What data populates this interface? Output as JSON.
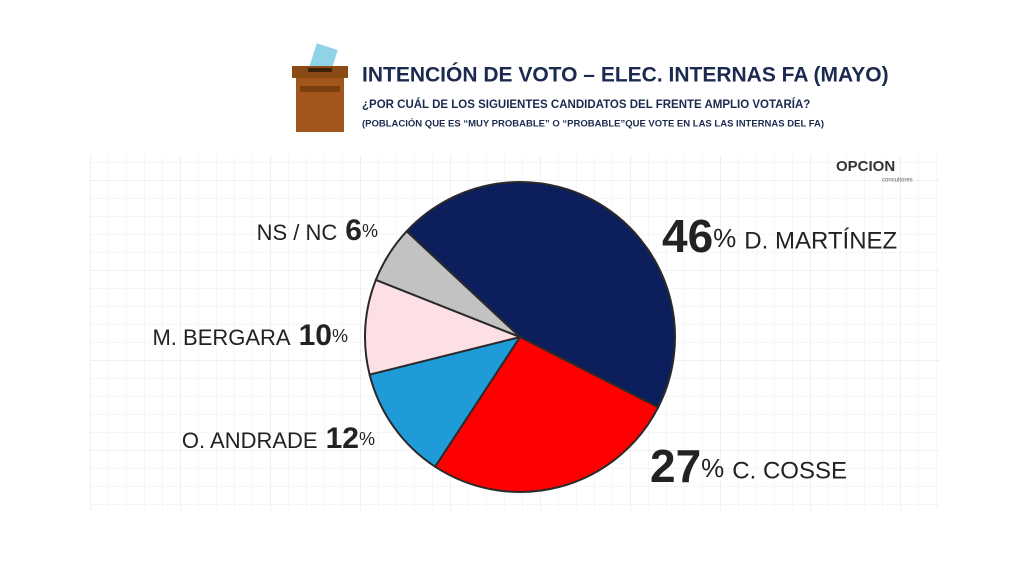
{
  "chart_data": {
    "type": "pie",
    "title": "INTENCIÓN DE VOTO – ELEC. INTERNAS FA (MAYO)",
    "subtitle": "¿POR CUÁL DE LOS SIGUIENTES CANDIDATOS DEL FRENTE AMPLIO VOTARÍA?",
    "note": "(POBLACIÓN QUE ES “MUY PROBABLE” O “PROBABLE”QUE VOTE EN LAS LAS INTERNAS DEL FA)",
    "source": "OPCION",
    "source_sub": "consultores",
    "categories": [
      "D. MARTÍNEZ",
      "C. COSSE",
      "O. ANDRADE",
      "M. BERGARA",
      "NS / NC"
    ],
    "values": [
      46,
      27,
      12,
      10,
      6
    ],
    "value_labels": [
      "46%",
      "27%",
      "12%",
      "10%",
      "6%"
    ],
    "colors": [
      "#0c1e5b",
      "#ff0000",
      "#1f9bd8",
      "#fde0e6",
      "#c2c2c2"
    ]
  }
}
